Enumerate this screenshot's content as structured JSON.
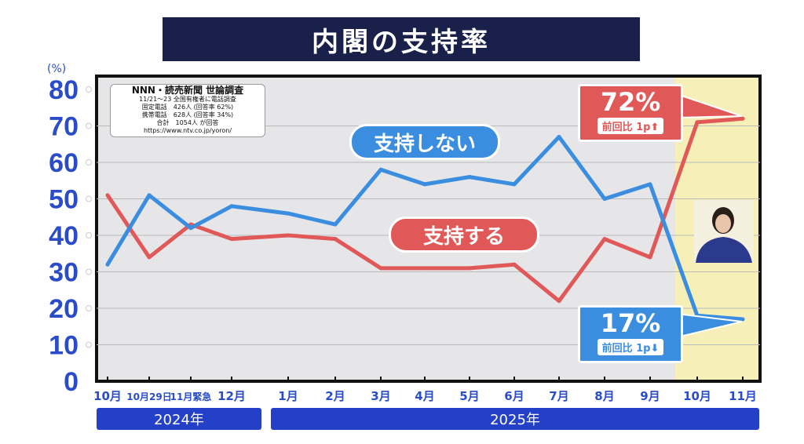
{
  "title": "内閣の支持率",
  "source_box": {
    "heading": "NNN・読売新聞 世論調査",
    "line1": "11/21〜23 全国有権者に電話調査",
    "line2": "固定電話　426人 (回答率 62%)",
    "line3": "携帯電話　628人 (回答率 34%)",
    "line4": "合計　1054人 が回答",
    "line5": "https://www.ntv.co.jp/yoron/"
  },
  "callouts": {
    "approve": {
      "value": "72%",
      "change": "前回比 1p⬆"
    },
    "disapprove": {
      "value": "17%",
      "change": "前回比 1p⬇"
    }
  },
  "colors": {
    "approve": "#e05858",
    "disapprove": "#3b8de0",
    "axis_text": "#2a4cc8",
    "year_bar": "#2540c8",
    "highlight": "#f6f0b8",
    "title_bg": "#19214a"
  },
  "chart_data": {
    "type": "line",
    "ylabel": "(%)",
    "ylim": [
      0,
      80
    ],
    "yticks": [
      0,
      10,
      20,
      30,
      40,
      50,
      60,
      70,
      80
    ],
    "grid": true,
    "categories": [
      "10月",
      "10月29日",
      "11月緊急",
      "12月",
      "1月",
      "2月",
      "3月",
      "4月",
      "5月",
      "6月",
      "7月",
      "8月",
      "9月",
      "10月",
      "11月"
    ],
    "year_groups": [
      {
        "label": "2024年",
        "span": 4
      },
      {
        "label": "2025年",
        "span": 11
      }
    ],
    "highlight_last": 2,
    "series": [
      {
        "name": "支持する",
        "color": "#e05858",
        "values": [
          51,
          34,
          43,
          39,
          40,
          39,
          31,
          31,
          31,
          32,
          22,
          39,
          34,
          71,
          72
        ]
      },
      {
        "name": "支持しない",
        "color": "#3b8de0",
        "values": [
          32,
          51,
          42,
          48,
          46,
          43,
          58,
          54,
          56,
          54,
          67,
          50,
          54,
          18,
          17
        ]
      }
    ]
  }
}
